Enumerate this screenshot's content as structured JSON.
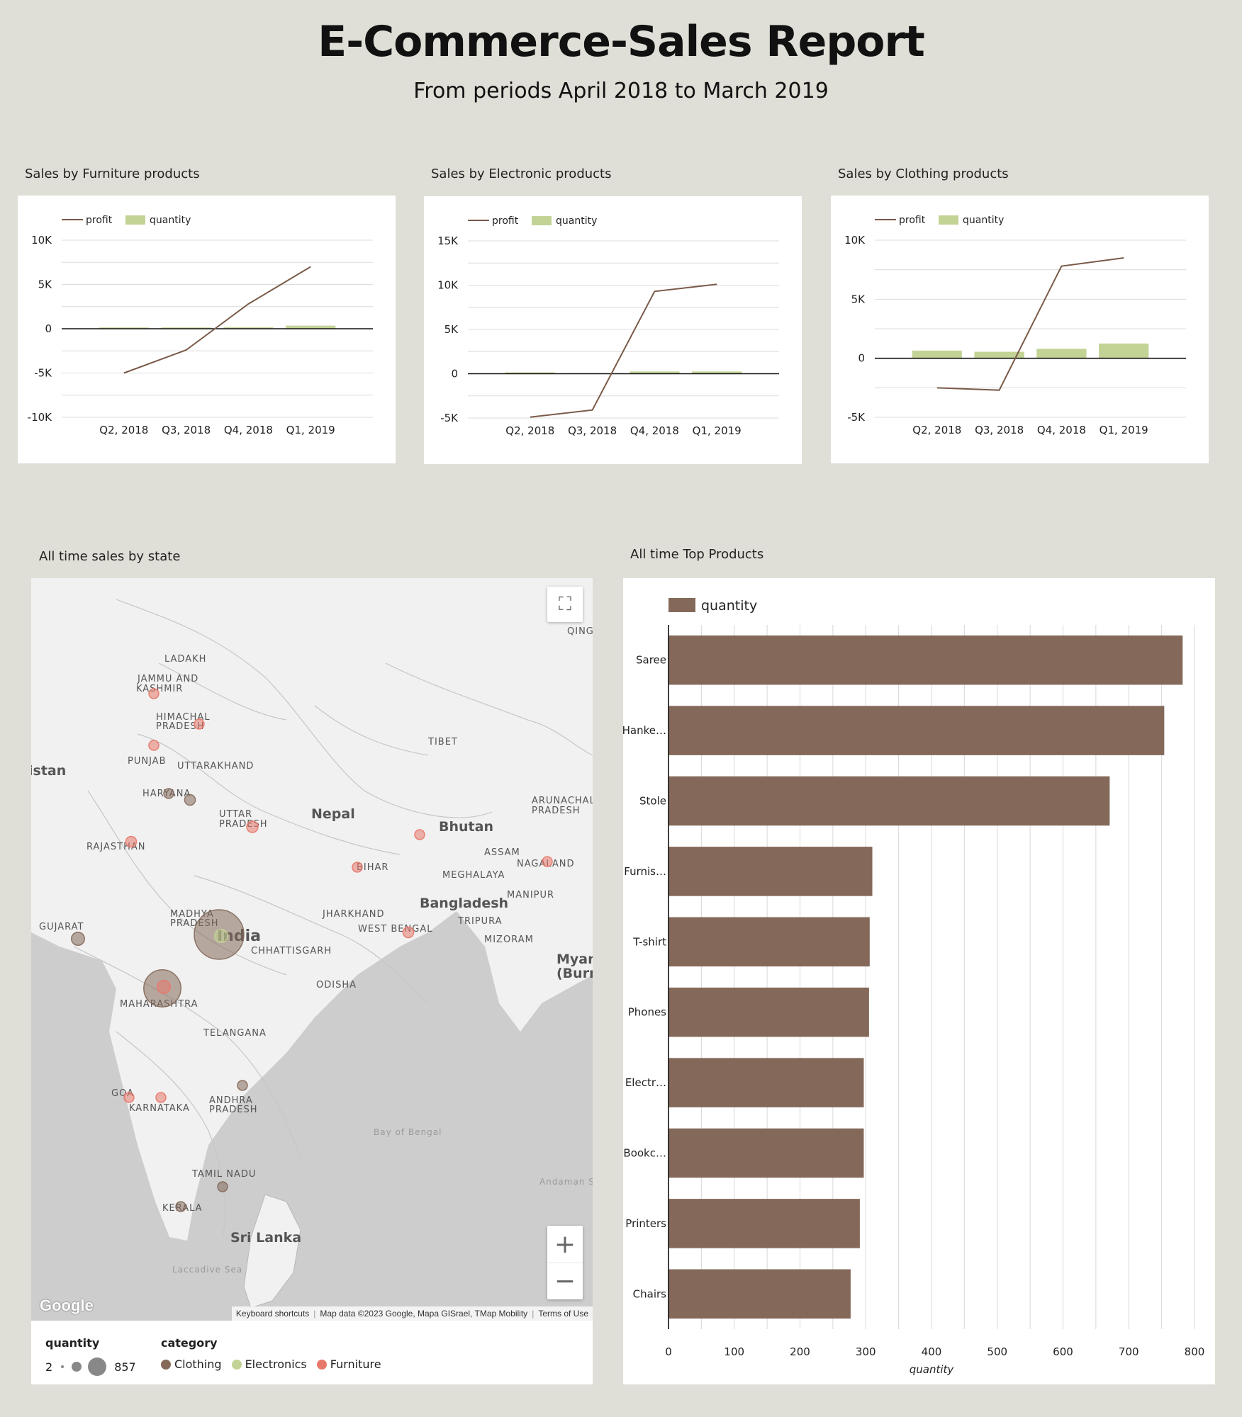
{
  "header": {
    "title": "E-Commerce-Sales Report",
    "subtitle": "From periods April 2018 to March 2019"
  },
  "colors": {
    "profit_line": "#7a5a48",
    "quantity_bar": "#c2d395",
    "top_products_bar": "#84695a",
    "clothing": "#84695a",
    "electronics": "#c2d395",
    "furniture": "#e8786a"
  },
  "sections": {
    "map_label": "All time sales by state",
    "top_products_label": "All time Top Products"
  },
  "chart_data": [
    {
      "id": "furniture",
      "type": "combo",
      "title": "Sales by Furniture products",
      "legend": [
        "profit",
        "quantity"
      ],
      "categories": [
        "Q2, 2018",
        "Q3, 2018",
        "Q4, 2018",
        "Q1, 2019"
      ],
      "series": [
        {
          "name": "profit",
          "kind": "line",
          "values": [
            -5000,
            -2400,
            2800,
            7000
          ]
        },
        {
          "name": "quantity",
          "kind": "bar",
          "values": [
            150,
            150,
            180,
            350
          ]
        }
      ],
      "ylim": [
        -10000,
        10000
      ],
      "ytick_values": [
        10000,
        5000,
        0,
        -5000,
        -10000
      ],
      "ytick_labels": [
        "10K",
        "5K",
        "0",
        "-5K",
        "-10K"
      ],
      "grid_step": 2500
    },
    {
      "id": "electronics",
      "type": "combo",
      "title": "Sales by Electronic products",
      "legend": [
        "profit",
        "quantity"
      ],
      "categories": [
        "Q2, 2018",
        "Q3, 2018",
        "Q4, 2018",
        "Q1, 2019"
      ],
      "series": [
        {
          "name": "profit",
          "kind": "line",
          "values": [
            -4900,
            -4100,
            9300,
            10100
          ]
        },
        {
          "name": "quantity",
          "kind": "bar",
          "values": [
            150,
            60,
            250,
            250
          ]
        }
      ],
      "ylim": [
        -5000,
        15000
      ],
      "ytick_values": [
        15000,
        10000,
        5000,
        0,
        -5000
      ],
      "ytick_labels": [
        "15K",
        "10K",
        "5K",
        "0",
        "-5K"
      ],
      "grid_step": 2500
    },
    {
      "id": "clothing",
      "type": "combo",
      "title": "Sales by Clothing products",
      "legend": [
        "profit",
        "quantity"
      ],
      "categories": [
        "Q2, 2018",
        "Q3, 2018",
        "Q4, 2018",
        "Q1, 2019"
      ],
      "series": [
        {
          "name": "profit",
          "kind": "line",
          "values": [
            -2500,
            -2700,
            7800,
            8500
          ]
        },
        {
          "name": "quantity",
          "kind": "bar",
          "values": [
            650,
            550,
            800,
            1250
          ]
        }
      ],
      "ylim": [
        -5000,
        10000
      ],
      "ytick_values": [
        10000,
        5000,
        0,
        -5000
      ],
      "ytick_labels": [
        "10K",
        "5K",
        "0",
        "-5K"
      ],
      "grid_step": 2500
    },
    {
      "id": "top_products",
      "type": "bar",
      "orientation": "horizontal",
      "legend": [
        "quantity"
      ],
      "categories": [
        "Saree",
        "Hanke…",
        "Stole",
        "Furnis…",
        "T-shirt",
        "Phones",
        "Electr…",
        "Bookc…",
        "Printers",
        "Chairs"
      ],
      "series": [
        {
          "name": "quantity",
          "values": [
            782,
            754,
            671,
            310,
            306,
            305,
            297,
            297,
            291,
            277
          ]
        }
      ],
      "xlim": [
        0,
        800
      ],
      "xticks": [
        0,
        100,
        200,
        300,
        400,
        500,
        600,
        700,
        800
      ],
      "xlabel": "quantity",
      "grid_step": 50
    }
  ],
  "map": {
    "labels": [
      {
        "text": "LADAKH",
        "bold": false
      },
      {
        "text": "JAMMU AND",
        "bold": false
      },
      {
        "text": "KASHMIR",
        "bold": false
      },
      {
        "text": "HIMACHAL",
        "bold": false
      },
      {
        "text": "PRADESH",
        "bold": false
      },
      {
        "text": "PUNJAB",
        "bold": false
      },
      {
        "text": "UTTARAKHAND",
        "bold": false
      },
      {
        "text": "HARYANA",
        "bold": false
      },
      {
        "text": "TIBET",
        "bold": false
      },
      {
        "text": "istan",
        "bold": true
      },
      {
        "text": "UTTAR",
        "bold": false
      },
      {
        "text": "PRADESH",
        "bold": false
      },
      {
        "text": "Nepal",
        "bold": true
      },
      {
        "text": "RAJASTHAN",
        "bold": false
      },
      {
        "text": "Bhutan",
        "bold": true
      },
      {
        "text": "ARUNACHAL",
        "bold": false
      },
      {
        "text": "PRADESH",
        "bold": false
      },
      {
        "text": "ASSAM",
        "bold": false
      },
      {
        "text": "NAGALAND",
        "bold": false
      },
      {
        "text": "BIHAR",
        "bold": false
      },
      {
        "text": "MEGHALAYA",
        "bold": false
      },
      {
        "text": "MANIPUR",
        "bold": false
      },
      {
        "text": "Bangladesh",
        "bold": true
      },
      {
        "text": "JHARKHAND",
        "bold": false
      },
      {
        "text": "TRIPURA",
        "bold": false
      },
      {
        "text": "WEST BENGAL",
        "bold": false
      },
      {
        "text": "MIZORAM",
        "bold": false
      },
      {
        "text": "GUJARAT",
        "bold": false
      },
      {
        "text": "MADHYA",
        "bold": false
      },
      {
        "text": "PRADESH",
        "bold": false
      },
      {
        "text": "India",
        "bold": true
      },
      {
        "text": "CHHATTISGARH",
        "bold": false
      },
      {
        "text": "Myan",
        "bold": true
      },
      {
        "text": "(Burr",
        "bold": true
      },
      {
        "text": "ODISHA",
        "bold": false
      },
      {
        "text": "MAHARASHTRA",
        "bold": false
      },
      {
        "text": "TELANGANA",
        "bold": false
      },
      {
        "text": "GOA",
        "bold": false
      },
      {
        "text": "ANDHRA",
        "bold": false
      },
      {
        "text": "PRADESH",
        "bold": false
      },
      {
        "text": "KARNATAKA",
        "bold": false
      },
      {
        "text": "Bay of Bengal",
        "bold": false
      },
      {
        "text": "TAMIL NADU",
        "bold": false
      },
      {
        "text": "Andaman Se",
        "bold": false
      },
      {
        "text": "KERALA",
        "bold": false
      },
      {
        "text": "Sri Lanka",
        "bold": true
      },
      {
        "text": "Laccadive Sea",
        "bold": false
      },
      {
        "text": "QING",
        "bold": false
      }
    ],
    "bubbles": [
      {
        "state": "Madhya Pradesh",
        "category": "Clothing",
        "quantity": 857
      },
      {
        "state": "Madhya Pradesh",
        "category": "Electronics",
        "quantity": 60
      },
      {
        "state": "Maharashtra",
        "category": "Clothing",
        "quantity": 480
      },
      {
        "state": "Maharashtra",
        "category": "Furniture",
        "quantity": 60
      },
      {
        "state": "Jammu and Kashmir",
        "category": "Furniture",
        "quantity": 25
      },
      {
        "state": "Himachal Pradesh",
        "category": "Furniture",
        "quantity": 20
      },
      {
        "state": "Punjab",
        "category": "Furniture",
        "quantity": 35
      },
      {
        "state": "Haryana",
        "category": "Clothing",
        "quantity": 20
      },
      {
        "state": "Delhi",
        "category": "Clothing",
        "quantity": 40
      },
      {
        "state": "Uttar Pradesh",
        "category": "Furniture",
        "quantity": 45
      },
      {
        "state": "Rajasthan",
        "category": "Furniture",
        "quantity": 40
      },
      {
        "state": "Bihar",
        "category": "Furniture",
        "quantity": 30
      },
      {
        "state": "Sikkim",
        "category": "Furniture",
        "quantity": 25
      },
      {
        "state": "Nagaland",
        "category": "Furniture",
        "quantity": 25
      },
      {
        "state": "West Bengal",
        "category": "Furniture",
        "quantity": 40
      },
      {
        "state": "Gujarat",
        "category": "Clothing",
        "quantity": 60
      },
      {
        "state": "Goa",
        "category": "Furniture",
        "quantity": 30
      },
      {
        "state": "Karnataka",
        "category": "Furniture",
        "quantity": 30
      },
      {
        "state": "Andhra Pradesh",
        "category": "Clothing",
        "quantity": 20
      },
      {
        "state": "Tamil Nadu",
        "category": "Clothing",
        "quantity": 15
      },
      {
        "state": "Kerala",
        "category": "Clothing",
        "quantity": 20
      }
    ],
    "controls": {
      "fullscreen_icon": "fullscreen-icon",
      "zoom_in_label": "+",
      "zoom_out_label": "−"
    },
    "google_logo": "Google",
    "attribution": {
      "keyboard": "Keyboard shortcuts",
      "data": "Map data ©2023 Google, Mapa GISrael, TMap Mobility",
      "terms": "Terms of Use"
    },
    "legend": {
      "quantity_title": "quantity",
      "quantity_min": "2",
      "quantity_max": "857",
      "category_title": "category",
      "categories": [
        "Clothing",
        "Electronics",
        "Furniture"
      ]
    }
  }
}
